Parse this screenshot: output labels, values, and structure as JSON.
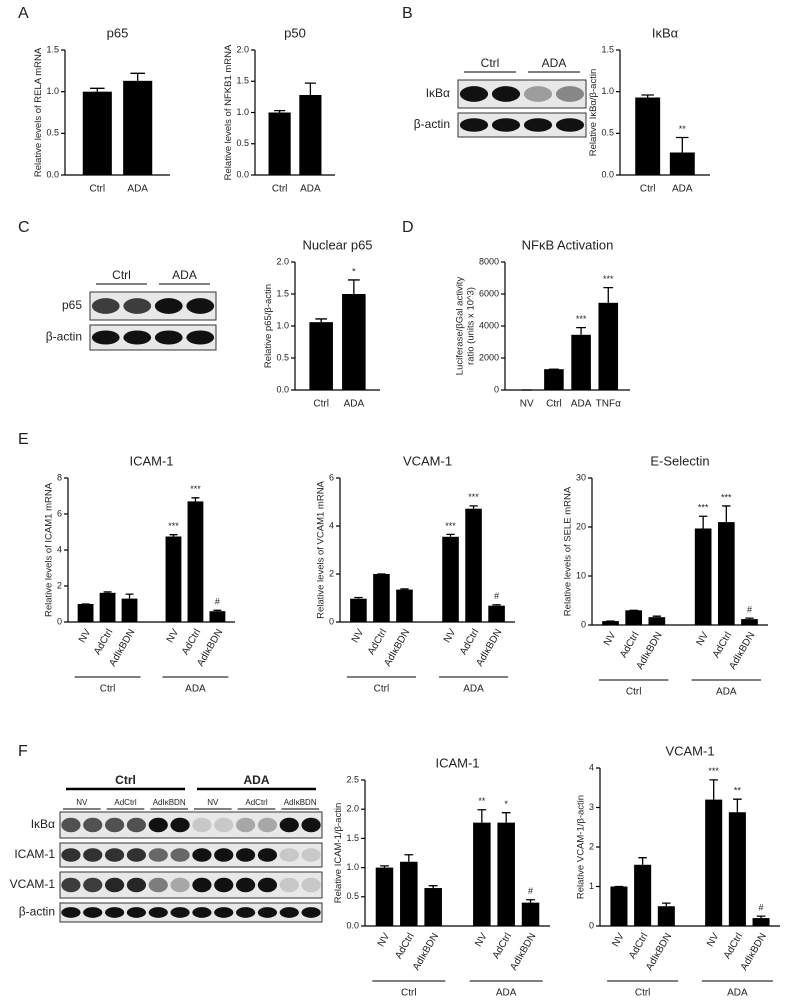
{
  "panel_labels": [
    "A",
    "B",
    "C",
    "D",
    "E",
    "F"
  ],
  "blots": [
    {
      "groups": [
        "Ctrl",
        "ADA"
      ],
      "rows": [
        "IκBα",
        "β-actin"
      ]
    },
    {
      "groups": [
        "Ctrl",
        "ADA"
      ],
      "rows": [
        "p65",
        "β-actin"
      ]
    },
    {
      "groups": [
        "Ctrl",
        "ADA"
      ],
      "lanes": [
        "NV",
        "AdCtrl",
        "AdIκBDN",
        "NV",
        "AdCtrl",
        "AdIκBDN"
      ],
      "rows": [
        "IκBα",
        "ICAM-1",
        "VCAM-1",
        "β-actin"
      ]
    }
  ],
  "chart_data": [
    {
      "type": "bar",
      "title": "p65",
      "ylabel": "Relative levels of RELA mRNA",
      "categories": [
        "Ctrl",
        "ADA"
      ],
      "values": [
        1.0,
        1.13
      ],
      "errors": [
        0.04,
        0.09
      ],
      "color": "#000000",
      "ylim": [
        0,
        1.5
      ],
      "yticks": [
        {
          "value": 0,
          "label": "0.0"
        },
        {
          "value": 0.5,
          "label": "0.5"
        },
        {
          "value": 1,
          "label": "1.0"
        },
        {
          "value": 1.5,
          "label": "1.5"
        }
      ]
    },
    {
      "type": "bar",
      "title": "p50",
      "ylabel": "Relative levels of NFKB1 mRNA",
      "categories": [
        "Ctrl",
        "ADA"
      ],
      "values": [
        1.0,
        1.28
      ],
      "errors": [
        0.03,
        0.19
      ],
      "color": "#000000",
      "ylim": [
        0,
        2
      ],
      "yticks": [
        {
          "value": 0,
          "label": "0.0"
        },
        {
          "value": 0.5,
          "label": "0.5"
        },
        {
          "value": 1,
          "label": "1.0"
        },
        {
          "value": 1.5,
          "label": "1.5"
        },
        {
          "value": 2,
          "label": "2.0"
        }
      ]
    },
    {
      "type": "bar",
      "title": "IκBα",
      "ylabel": "Relative IκBα/β-actin",
      "categories": [
        "Ctrl",
        "ADA"
      ],
      "values": [
        0.93,
        0.27
      ],
      "errors": [
        0.03,
        0.18
      ],
      "annotations": [
        {
          "index": 1,
          "text": "**"
        }
      ],
      "color": "#000000",
      "ylim": [
        0,
        1.5
      ],
      "yticks": [
        {
          "value": 0,
          "label": "0.0"
        },
        {
          "value": 0.5,
          "label": "0.5"
        },
        {
          "value": 1,
          "label": "1.0"
        },
        {
          "value": 1.5,
          "label": "1.5"
        }
      ]
    },
    {
      "type": "bar",
      "title": "Nuclear p65",
      "ylabel": "Relative p65/β-actin",
      "categories": [
        "Ctrl",
        "ADA"
      ],
      "values": [
        1.06,
        1.5
      ],
      "errors": [
        0.05,
        0.22
      ],
      "annotations": [
        {
          "index": 1,
          "text": "*"
        }
      ],
      "color": "#000000",
      "ylim": [
        0,
        2
      ],
      "yticks": [
        {
          "value": 0,
          "label": "0.0"
        },
        {
          "value": 0.5,
          "label": "0.5"
        },
        {
          "value": 1,
          "label": "1.0"
        },
        {
          "value": 1.5,
          "label": "1.5"
        },
        {
          "value": 2,
          "label": "2.0"
        }
      ]
    },
    {
      "type": "bar",
      "title": "NFκB Activation",
      "ylabel": [
        "Luciferase/βGal activity",
        "ratio (units x 10^3)"
      ],
      "categories": [
        "NV",
        "Ctrl",
        "ADA",
        "TNFα"
      ],
      "values": [
        0,
        1300,
        3450,
        5450
      ],
      "errors": [
        0,
        0,
        450,
        950
      ],
      "annotations": [
        {
          "index": 2,
          "text": "***"
        },
        {
          "index": 3,
          "text": "***"
        }
      ],
      "color": "#000000",
      "ylim": [
        0,
        8000
      ],
      "yticks": [
        0,
        2000,
        4000,
        6000,
        8000
      ]
    },
    {
      "type": "bar",
      "title": "ICAM-1",
      "ylabel": "Relative levels of ICAM1 mRNA",
      "categories": [
        "NV",
        "AdCtrl",
        "AdIκBDN",
        "NV",
        "AdCtrl",
        "AdIκBDN"
      ],
      "groups": [
        "Ctrl",
        "ADA"
      ],
      "values": [
        1.0,
        1.62,
        1.3,
        4.75,
        6.7,
        0.6
      ],
      "errors": [
        0,
        0.05,
        0.25,
        0.1,
        0.2,
        0.05
      ],
      "annotations": [
        {
          "index": 3,
          "text": "***"
        },
        {
          "index": 4,
          "text": "***"
        },
        {
          "index": 5,
          "text": "#"
        }
      ],
      "color": "#000000",
      "ylim": [
        0,
        8
      ],
      "yticks": [
        0,
        2,
        4,
        6,
        8
      ]
    },
    {
      "type": "bar",
      "title": "VCAM-1",
      "ylabel": "Relative levels of VCAM1 mRNA",
      "categories": [
        "NV",
        "AdCtrl",
        "AdIκBDN",
        "NV",
        "AdCtrl",
        "AdIκBDN"
      ],
      "groups": [
        "Ctrl",
        "ADA"
      ],
      "values": [
        0.97,
        2.0,
        1.35,
        3.55,
        4.72,
        0.68
      ],
      "errors": [
        0.05,
        0,
        0.03,
        0.1,
        0.12,
        0.04
      ],
      "annotations": [
        {
          "index": 3,
          "text": "***"
        },
        {
          "index": 4,
          "text": "***"
        },
        {
          "index": 5,
          "text": "#"
        }
      ],
      "color": "#000000",
      "ylim": [
        0,
        6
      ],
      "yticks": [
        0,
        2,
        4,
        6
      ]
    },
    {
      "type": "bar",
      "title": "E-Selectin",
      "ylabel": "Relative levels of SELE mRNA",
      "categories": [
        "NV",
        "AdCtrl",
        "AdIκBDN",
        "NV",
        "AdCtrl",
        "AdIκBDN"
      ],
      "groups": [
        "Ctrl",
        "ADA"
      ],
      "values": [
        0.8,
        3.0,
        1.6,
        19.7,
        21.0,
        1.2
      ],
      "errors": [
        0,
        0,
        0.2,
        2.5,
        3.3,
        0.2
      ],
      "annotations": [
        {
          "index": 3,
          "text": "***"
        },
        {
          "index": 4,
          "text": "***"
        },
        {
          "index": 5,
          "text": "#"
        }
      ],
      "color": "#000000",
      "ylim": [
        0,
        30
      ],
      "yticks": [
        0,
        10,
        20,
        30
      ]
    },
    {
      "type": "bar",
      "title": "ICAM-1",
      "ylabel": "Relative ICAM-1/β-actin",
      "categories": [
        "NV",
        "AdCtrl",
        "AdIκBDN",
        "NV",
        "AdCtrl",
        "AdIκBDN"
      ],
      "groups": [
        "Ctrl",
        "ADA"
      ],
      "values": [
        1.0,
        1.1,
        0.65,
        1.77,
        1.77,
        0.4
      ],
      "errors": [
        0.03,
        0.12,
        0.04,
        0.22,
        0.17,
        0.05
      ],
      "annotations": [
        {
          "index": 3,
          "text": "**"
        },
        {
          "index": 4,
          "text": "*"
        },
        {
          "index": 5,
          "text": "#"
        }
      ],
      "color": "#000000",
      "ylim": [
        0,
        2.5
      ],
      "yticks": [
        {
          "value": 0,
          "label": "0.0"
        },
        {
          "value": 0.5,
          "label": "0.5"
        },
        {
          "value": 1,
          "label": "1.0"
        },
        {
          "value": 1.5,
          "label": "1.5"
        },
        {
          "value": 2,
          "label": "2.0"
        },
        {
          "value": 2.5,
          "label": "2.5"
        }
      ]
    },
    {
      "type": "bar",
      "title": "VCAM-1",
      "ylabel": "Relative VCAM-1/β-actin",
      "categories": [
        "NV",
        "AdCtrl",
        "AdIκBDN",
        "NV",
        "AdCtrl",
        "AdIκBDN"
      ],
      "groups": [
        "Ctrl",
        "ADA"
      ],
      "values": [
        1.0,
        1.55,
        0.5,
        3.2,
        2.88,
        0.2
      ],
      "errors": [
        0,
        0.18,
        0.08,
        0.5,
        0.33,
        0.05
      ],
      "annotations": [
        {
          "index": 3,
          "text": "***"
        },
        {
          "index": 4,
          "text": "**"
        },
        {
          "index": 5,
          "text": "#"
        }
      ],
      "color": "#000000",
      "ylim": [
        0,
        4
      ],
      "yticks": [
        0,
        1,
        2,
        3,
        4
      ]
    }
  ]
}
